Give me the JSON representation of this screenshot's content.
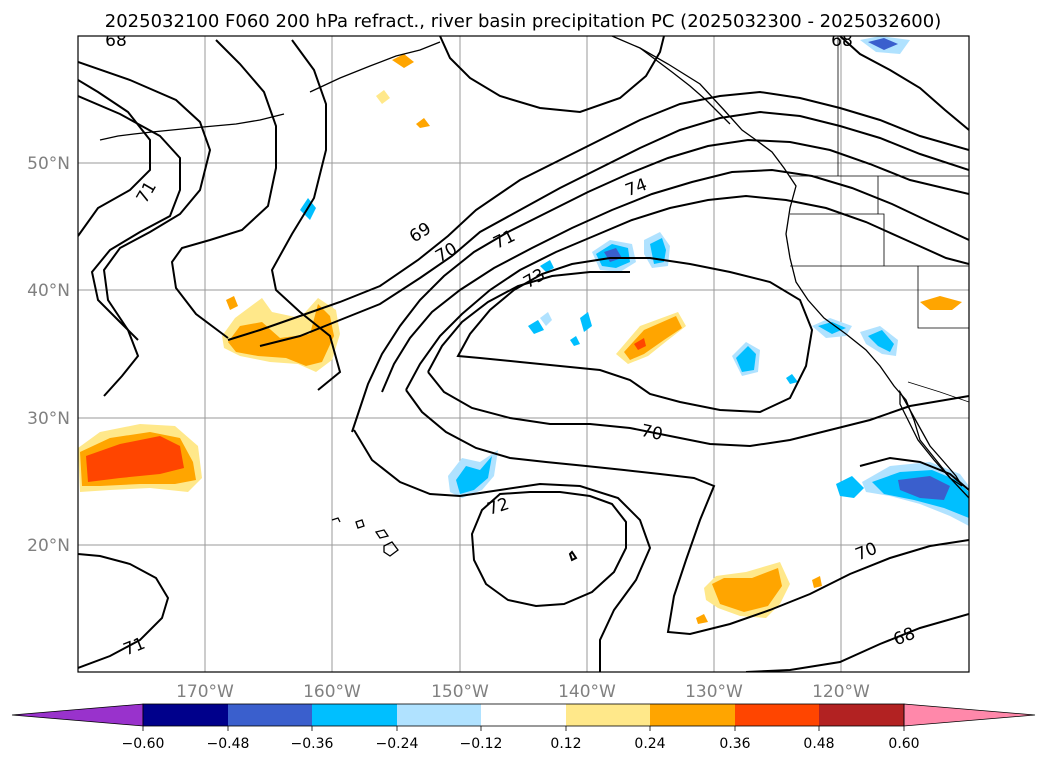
{
  "title": "2025032100 F060 200 hPa refract., river basin precipitation PC (2025032300 - 2025032600)",
  "map": {
    "extent": {
      "lon": [
        -180,
        -110
      ],
      "lat": [
        10,
        60
      ]
    },
    "lat_labels": [
      "20°N",
      "30°N",
      "40°N",
      "50°N"
    ],
    "lon_labels": [
      "170°W",
      "160°W",
      "150°W",
      "140°W",
      "130°W",
      "120°W"
    ],
    "gridlines": true,
    "contour_labels": [
      "68",
      "71",
      "68",
      "69",
      "70",
      "71",
      "74",
      "73",
      "70",
      "72",
      "70",
      "71",
      "68"
    ]
  },
  "colorbar": {
    "ticks": [
      "−0.60",
      "−0.48",
      "−0.36",
      "−0.24",
      "−0.12",
      "0.12",
      "0.24",
      "0.36",
      "0.48",
      "0.60"
    ],
    "colors": [
      "#9932cc",
      "#00008b",
      "#3a5fcd",
      "#00bfff",
      "#b0e2ff",
      "#ffffff",
      "#ffe88a",
      "#ffa500",
      "#ff4500",
      "#b22222",
      "#ff88aa"
    ],
    "extend": "both"
  },
  "colors": {
    "pos_light": "#ffe88a",
    "pos_mid": "#ffa500",
    "pos_high": "#ff4500",
    "neg_light": "#b0e2ff",
    "neg_mid": "#00bfff",
    "neg_high": "#3a5fcd",
    "grid": "#9a9a9a",
    "coast": "#000000"
  }
}
